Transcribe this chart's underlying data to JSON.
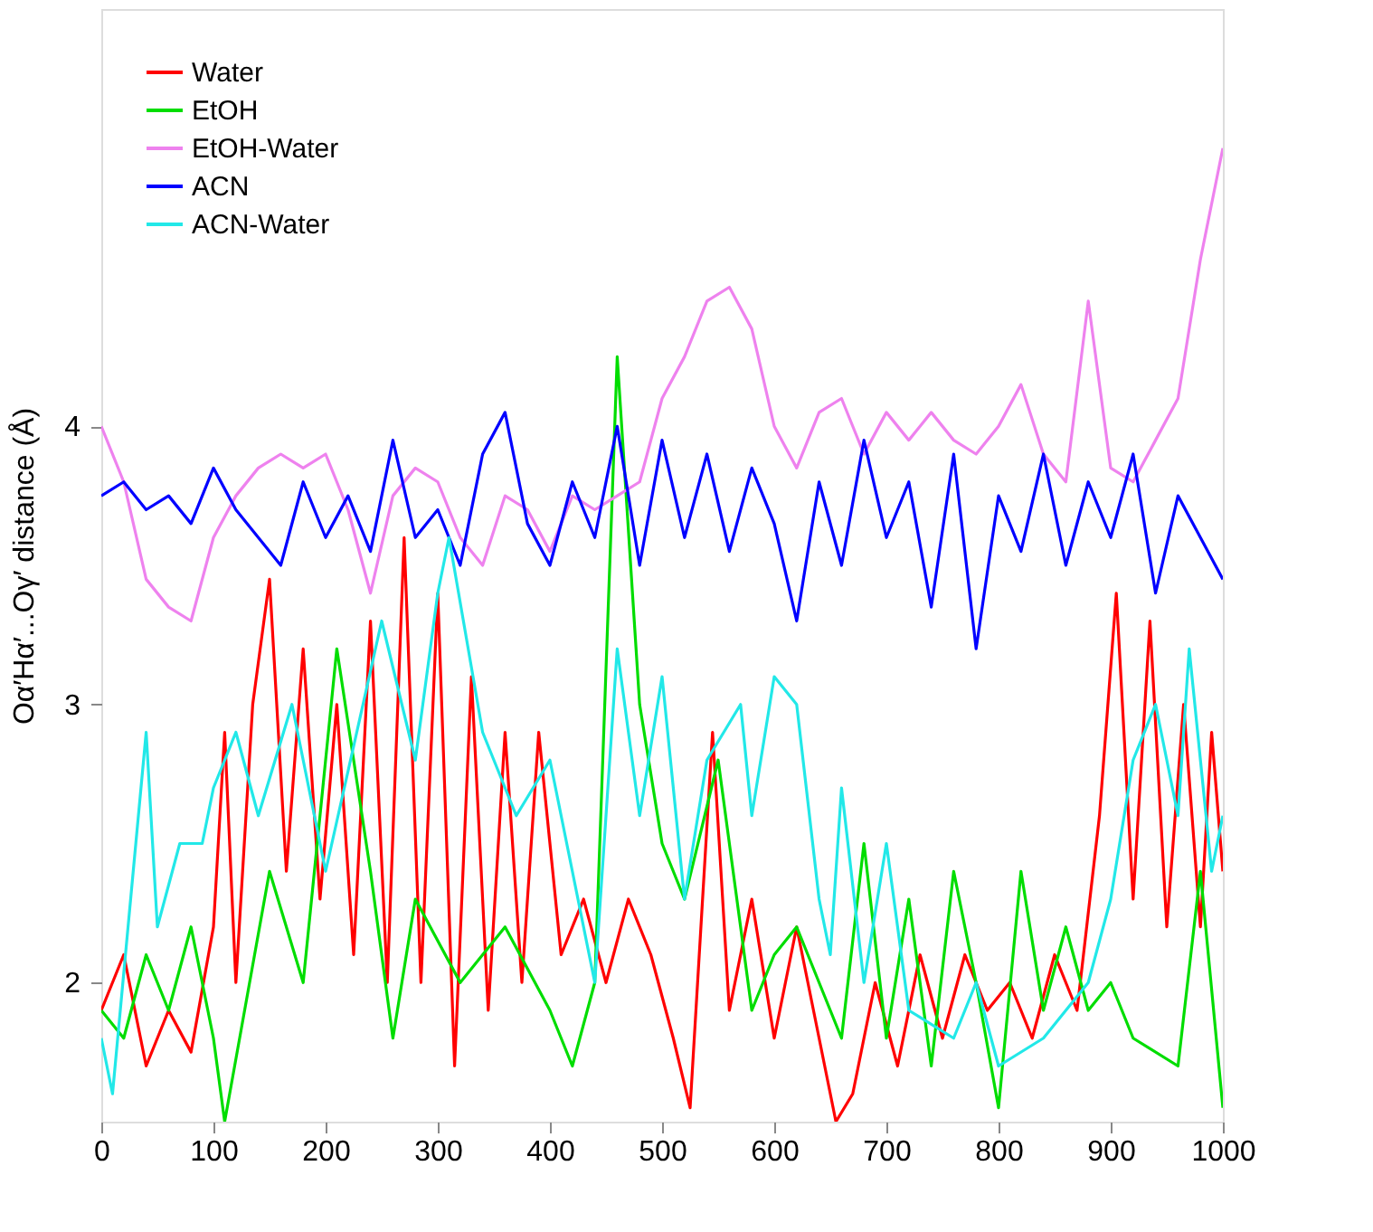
{
  "chart_data": {
    "type": "line",
    "ylabel": "Oα′Hα′...Oγ′ distance (Å)",
    "xlim": [
      0,
      1000
    ],
    "ylim": [
      1.5,
      5.5
    ],
    "xticks": [
      0,
      100,
      200,
      300,
      400,
      500,
      600,
      700,
      800,
      900,
      1000
    ],
    "yticks": [
      2,
      3,
      4
    ],
    "grid": false,
    "legend": "top left",
    "marker": "none",
    "line_style": "solid",
    "series": [
      {
        "name": "Water",
        "color": "#ff0000",
        "x": [
          0,
          20,
          40,
          60,
          80,
          100,
          110,
          120,
          135,
          150,
          165,
          180,
          195,
          210,
          225,
          240,
          255,
          270,
          285,
          300,
          315,
          330,
          345,
          360,
          375,
          390,
          410,
          430,
          450,
          470,
          490,
          510,
          525,
          545,
          560,
          580,
          600,
          620,
          640,
          655,
          670,
          690,
          710,
          730,
          750,
          770,
          790,
          810,
          830,
          850,
          870,
          890,
          905,
          920,
          935,
          950,
          965,
          980,
          990,
          1000
        ],
        "values": [
          1.9,
          2.1,
          1.7,
          1.9,
          1.75,
          2.2,
          2.9,
          2.0,
          3.0,
          3.45,
          2.4,
          3.2,
          2.3,
          3.0,
          2.1,
          3.3,
          2.0,
          3.6,
          2.0,
          3.4,
          1.7,
          3.1,
          1.9,
          2.9,
          2.0,
          2.9,
          2.1,
          2.3,
          2.0,
          2.3,
          2.1,
          1.8,
          1.55,
          2.9,
          1.9,
          2.3,
          1.8,
          2.2,
          1.8,
          1.5,
          1.6,
          2.0,
          1.7,
          2.1,
          1.8,
          2.1,
          1.9,
          2.0,
          1.8,
          2.1,
          1.9,
          2.6,
          3.4,
          2.3,
          3.3,
          2.2,
          3.0,
          2.2,
          2.9,
          2.4
        ]
      },
      {
        "name": "EtOH",
        "color": "#00dd00",
        "x": [
          0,
          20,
          40,
          60,
          80,
          100,
          110,
          150,
          180,
          210,
          240,
          260,
          280,
          320,
          360,
          400,
          420,
          440,
          460,
          480,
          500,
          520,
          550,
          580,
          600,
          620,
          660,
          680,
          700,
          720,
          740,
          760,
          780,
          800,
          820,
          840,
          860,
          880,
          900,
          920,
          960,
          980,
          1000
        ],
        "values": [
          1.9,
          1.8,
          2.1,
          1.9,
          2.2,
          1.8,
          1.5,
          2.4,
          2.0,
          3.2,
          2.4,
          1.8,
          2.3,
          2.0,
          2.2,
          1.9,
          1.7,
          2.0,
          4.25,
          3.0,
          2.5,
          2.3,
          2.8,
          1.9,
          2.1,
          2.2,
          1.8,
          2.5,
          1.8,
          2.3,
          1.7,
          2.4,
          2.0,
          1.55,
          2.4,
          1.9,
          2.2,
          1.9,
          2.0,
          1.8,
          1.7,
          2.4,
          1.55
        ]
      },
      {
        "name": "EtOH-Water",
        "color": "#ee82ee",
        "x": [
          0,
          20,
          40,
          60,
          80,
          100,
          120,
          140,
          160,
          180,
          200,
          220,
          240,
          260,
          280,
          300,
          320,
          340,
          360,
          380,
          400,
          420,
          440,
          460,
          480,
          500,
          520,
          540,
          560,
          580,
          600,
          620,
          640,
          660,
          680,
          700,
          720,
          740,
          760,
          780,
          800,
          820,
          840,
          860,
          880,
          900,
          920,
          940,
          960,
          980,
          1000
        ],
        "values": [
          4.0,
          3.8,
          3.45,
          3.35,
          3.3,
          3.6,
          3.75,
          3.85,
          3.9,
          3.85,
          3.9,
          3.7,
          3.4,
          3.75,
          3.85,
          3.8,
          3.6,
          3.5,
          3.75,
          3.7,
          3.55,
          3.75,
          3.7,
          3.75,
          3.8,
          4.1,
          4.25,
          4.45,
          4.5,
          4.35,
          4.0,
          3.85,
          4.05,
          4.1,
          3.9,
          4.05,
          3.95,
          4.05,
          3.95,
          3.9,
          4.0,
          4.15,
          3.9,
          3.8,
          4.45,
          3.85,
          3.8,
          3.95,
          4.1,
          4.6,
          5.0
        ]
      },
      {
        "name": "ACN",
        "color": "#0000ff",
        "x": [
          0,
          20,
          40,
          60,
          80,
          100,
          120,
          140,
          160,
          180,
          200,
          220,
          240,
          260,
          280,
          300,
          320,
          340,
          360,
          380,
          400,
          420,
          440,
          460,
          480,
          500,
          520,
          540,
          560,
          580,
          600,
          620,
          640,
          660,
          680,
          700,
          720,
          740,
          760,
          780,
          800,
          820,
          840,
          860,
          880,
          900,
          920,
          940,
          960,
          980,
          1000
        ],
        "values": [
          3.75,
          3.8,
          3.7,
          3.75,
          3.65,
          3.85,
          3.7,
          3.6,
          3.5,
          3.8,
          3.6,
          3.75,
          3.55,
          3.95,
          3.6,
          3.7,
          3.5,
          3.9,
          4.05,
          3.65,
          3.5,
          3.8,
          3.6,
          4.0,
          3.5,
          3.95,
          3.6,
          3.9,
          3.55,
          3.85,
          3.65,
          3.3,
          3.8,
          3.5,
          3.95,
          3.6,
          3.8,
          3.35,
          3.9,
          3.2,
          3.75,
          3.55,
          3.9,
          3.5,
          3.8,
          3.6,
          3.9,
          3.4,
          3.75,
          3.6,
          3.45
        ]
      },
      {
        "name": "ACN-Water",
        "color": "#22e8e8",
        "x": [
          0,
          10,
          40,
          50,
          70,
          90,
          100,
          120,
          140,
          170,
          200,
          250,
          280,
          300,
          310,
          340,
          370,
          400,
          420,
          440,
          460,
          480,
          500,
          520,
          540,
          570,
          580,
          600,
          620,
          640,
          650,
          660,
          680,
          700,
          720,
          760,
          780,
          800,
          840,
          880,
          900,
          920,
          940,
          960,
          970,
          990,
          1000
        ],
        "values": [
          1.8,
          1.6,
          2.9,
          2.2,
          2.5,
          2.5,
          2.7,
          2.9,
          2.6,
          3.0,
          2.4,
          3.3,
          2.8,
          3.4,
          3.6,
          2.9,
          2.6,
          2.8,
          2.4,
          2.0,
          3.2,
          2.6,
          3.1,
          2.3,
          2.8,
          3.0,
          2.6,
          3.1,
          3.0,
          2.3,
          2.1,
          2.7,
          2.0,
          2.5,
          1.9,
          1.8,
          2.0,
          1.7,
          1.8,
          2.0,
          2.3,
          2.8,
          3.0,
          2.6,
          3.2,
          2.4,
          2.6
        ]
      }
    ]
  }
}
